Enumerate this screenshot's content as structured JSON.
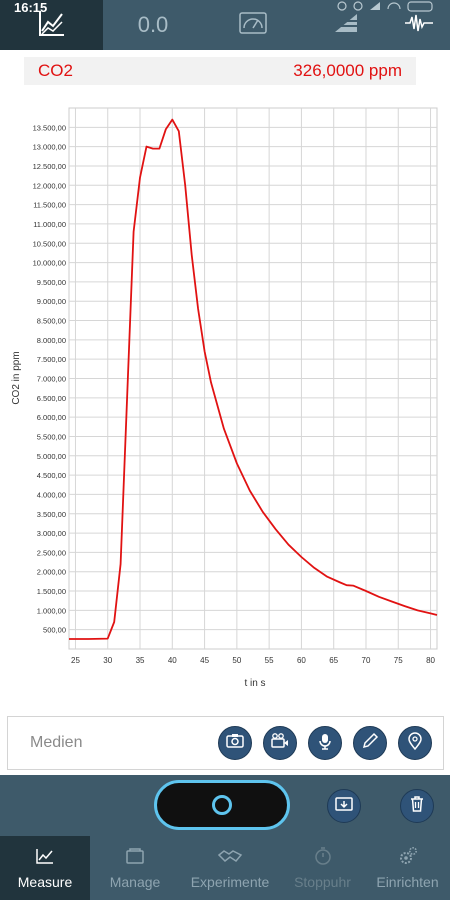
{
  "status_bar": {
    "time": "16:15"
  },
  "top_tabs": {
    "digital_value": "0.0"
  },
  "reading": {
    "label": "CO2",
    "value": "326,0000 ppm"
  },
  "chart_data": {
    "type": "line",
    "title": "",
    "xlabel": "t in s",
    "ylabel": "CO2 in ppm",
    "xlim": [
      24,
      81
    ],
    "ylim": [
      0,
      14000
    ],
    "x_ticks": [
      25,
      30,
      35,
      40,
      45,
      50,
      55,
      60,
      65,
      70,
      75,
      80
    ],
    "y_ticks": [
      500,
      1000,
      1500,
      2000,
      2500,
      3000,
      3500,
      4000,
      4500,
      5000,
      5500,
      6000,
      6500,
      7000,
      7500,
      8000,
      8500,
      9000,
      9500,
      10000,
      10500,
      11000,
      11500,
      12000,
      12500,
      13000,
      13500
    ],
    "y_tick_labels": [
      "500,00",
      "1.000,00",
      "1.500,00",
      "2.000,00",
      "2.500,00",
      "3.000,00",
      "3.500,00",
      "4.000,00",
      "4.500,00",
      "5.000,00",
      "5.500,00",
      "6.000,00",
      "6.500,00",
      "7.000,00",
      "7.500,00",
      "8.000,00",
      "8.500,00",
      "9.000,00",
      "9.500,00",
      "10.000,00",
      "10.500,00",
      "11.000,00",
      "11.500,00",
      "12.000,00",
      "12.500,00",
      "13.000,00",
      "13.500,00"
    ],
    "grid": true,
    "series": [
      {
        "color": "#e11212",
        "x": [
          24,
          27,
          30,
          31,
          32,
          33,
          34,
          35,
          36,
          37,
          38,
          39,
          40,
          41,
          42,
          43,
          44,
          45,
          46,
          48,
          50,
          52,
          54,
          56,
          58,
          60,
          62,
          64,
          66,
          67,
          68,
          70,
          72,
          74,
          76,
          78,
          80,
          81
        ],
        "y": [
          260,
          260,
          270,
          700,
          2200,
          6500,
          10800,
          12200,
          13000,
          12950,
          12950,
          13450,
          13700,
          13400,
          12000,
          10200,
          8800,
          7700,
          6900,
          5700,
          4800,
          4100,
          3550,
          3100,
          2700,
          2380,
          2100,
          1870,
          1720,
          1650,
          1640,
          1500,
          1350,
          1230,
          1110,
          1000,
          920,
          880
        ]
      }
    ]
  },
  "media": {
    "label": "Medien"
  },
  "nav": {
    "measure": "Measure",
    "manage": "Manage",
    "experimente": "Experimente",
    "stoppuhr": "Stoppuhr",
    "einrichten": "Einrichten"
  }
}
